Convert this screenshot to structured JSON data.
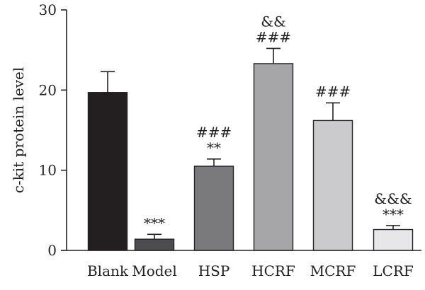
{
  "chart_data": {
    "type": "bar",
    "title": "",
    "xlabel": "",
    "ylabel": "c-kit protein level",
    "ylim": [
      0,
      30
    ],
    "yticks": [
      0,
      10,
      20,
      30
    ],
    "grid": false,
    "categories": [
      "Blank",
      "Model",
      "HSP",
      "HCRF",
      "MCRF",
      "LCRF"
    ],
    "values": [
      19.7,
      1.4,
      10.5,
      23.3,
      16.2,
      2.6
    ],
    "error": [
      2.6,
      0.6,
      0.9,
      1.9,
      2.2,
      0.5
    ],
    "annotations": [
      [],
      [
        "***"
      ],
      [
        "###",
        "**"
      ],
      [
        "&&",
        "###"
      ],
      [
        "###"
      ],
      [
        "&&&",
        "***"
      ]
    ],
    "bar_colors": [
      "#231f20",
      "#4d4d4f",
      "#7a7a7c",
      "#a6a6a8",
      "#cbcbcd",
      "#e7e7e9"
    ]
  }
}
